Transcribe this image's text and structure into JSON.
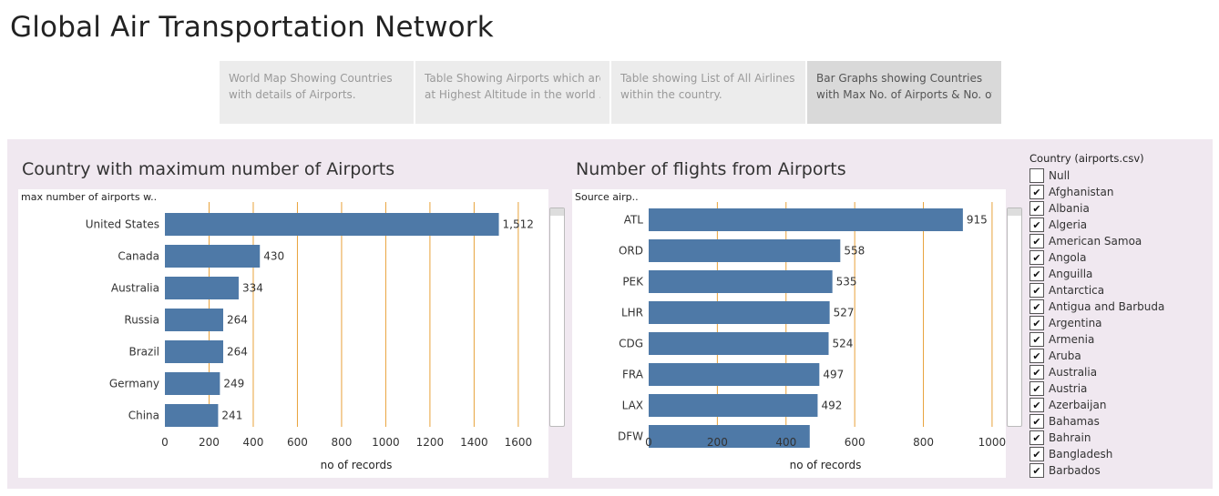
{
  "page": {
    "title": "Global Air Transportation Network"
  },
  "tabs": [
    {
      "line1": "World Map Showing Countries",
      "line2": "with details of Airports.",
      "active": false
    },
    {
      "line1": "Table Showing Airports which are",
      "line2": "at Highest Altitude in the world ..",
      "active": false
    },
    {
      "line1": "Table showing List of All Airlines",
      "line2": "within the country.",
      "active": false
    },
    {
      "line1": "Bar Graphs showing Countries",
      "line2": "with Max No. of Airports & No. of..",
      "active": true
    }
  ],
  "chart_data": [
    {
      "type": "bar",
      "orientation": "horizontal",
      "title": "Country with maximum number of Airports",
      "row_header": "max number of airports w..",
      "xlabel": "no of records",
      "categories": [
        "United States",
        "Canada",
        "Australia",
        "Russia",
        "Brazil",
        "Germany",
        "China"
      ],
      "values": [
        1512,
        430,
        334,
        264,
        264,
        249,
        241
      ],
      "value_labels": [
        "1,512",
        "430",
        "334",
        "264",
        "264",
        "249",
        "241"
      ],
      "xticks": [
        0,
        200,
        400,
        600,
        800,
        1000,
        1200,
        1400,
        1600
      ],
      "xlim": [
        0,
        1650
      ],
      "grid": true,
      "bar_color": "#4e79a7",
      "grid_color": "#e8a23a"
    },
    {
      "type": "bar",
      "orientation": "horizontal",
      "title": "Number of flights from Airports",
      "row_header": "Source airp..",
      "xlabel": "no of records",
      "categories": [
        "ATL",
        "ORD",
        "PEK",
        "LHR",
        "CDG",
        "FRA",
        "LAX",
        "DFW"
      ],
      "values": [
        915,
        558,
        535,
        527,
        524,
        497,
        492,
        469
      ],
      "value_labels": [
        "915",
        "558",
        "535",
        "527",
        "524",
        "497",
        "492",
        ""
      ],
      "xticks": [
        0,
        200,
        400,
        600,
        800,
        1000
      ],
      "xlim": [
        0,
        1040
      ],
      "grid": true,
      "bar_color": "#4e79a7",
      "grid_color": "#e8a23a"
    }
  ],
  "filter": {
    "title": "Country (airports.csv)",
    "items": [
      {
        "label": "Null",
        "checked": false
      },
      {
        "label": "Afghanistan",
        "checked": true
      },
      {
        "label": "Albania",
        "checked": true
      },
      {
        "label": "Algeria",
        "checked": true
      },
      {
        "label": "American Samoa",
        "checked": true
      },
      {
        "label": "Angola",
        "checked": true
      },
      {
        "label": "Anguilla",
        "checked": true
      },
      {
        "label": "Antarctica",
        "checked": true
      },
      {
        "label": "Antigua and Barbuda",
        "checked": true
      },
      {
        "label": "Argentina",
        "checked": true
      },
      {
        "label": "Armenia",
        "checked": true
      },
      {
        "label": "Aruba",
        "checked": true
      },
      {
        "label": "Australia",
        "checked": true
      },
      {
        "label": "Austria",
        "checked": true
      },
      {
        "label": "Azerbaijan",
        "checked": true
      },
      {
        "label": "Bahamas",
        "checked": true
      },
      {
        "label": "Bahrain",
        "checked": true
      },
      {
        "label": "Bangladesh",
        "checked": true
      },
      {
        "label": "Barbados",
        "checked": true
      }
    ]
  }
}
